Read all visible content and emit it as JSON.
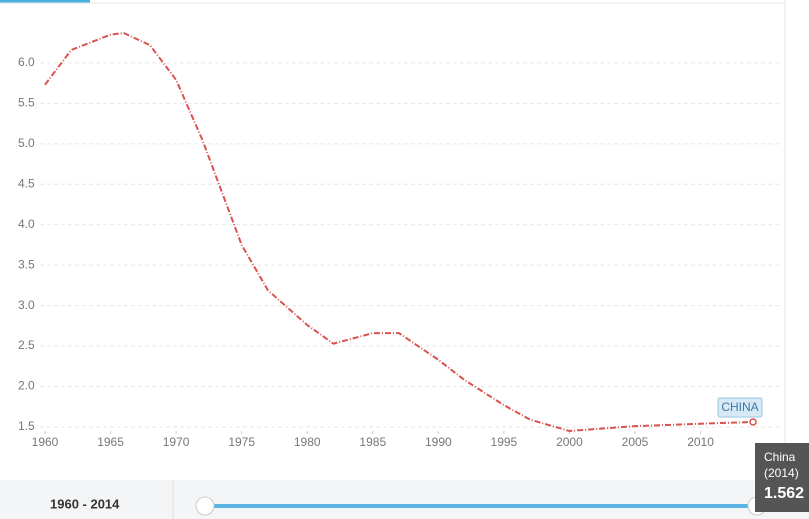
{
  "chart_data": {
    "type": "line",
    "x": [
      1960,
      1962,
      1965,
      1966,
      1968,
      1970,
      1972,
      1975,
      1977,
      1980,
      1982,
      1985,
      1987,
      1990,
      1992,
      1995,
      1997,
      2000,
      2005,
      2010,
      2014
    ],
    "series": [
      {
        "name": "China",
        "label": "CHINA",
        "color": "#d9534f",
        "values": [
          5.73,
          6.16,
          6.35,
          6.37,
          6.22,
          5.79,
          5.05,
          3.75,
          3.19,
          2.76,
          2.53,
          2.66,
          2.66,
          2.33,
          2.08,
          1.77,
          1.59,
          1.45,
          1.51,
          1.54,
          1.562
        ]
      }
    ],
    "xlim": [
      1960,
      2014
    ],
    "xticks": [
      1960,
      1965,
      1970,
      1975,
      1980,
      1985,
      1990,
      1995,
      2000,
      2005,
      2010
    ],
    "ylim": [
      1.45,
      6.6
    ],
    "yticks": [
      1.5,
      {
        "value": 2,
        "label": "2.0"
      },
      2.5,
      {
        "value": 3,
        "label": "3.0"
      },
      3.5,
      {
        "value": 4,
        "label": "4.0"
      },
      4.5,
      {
        "value": 5,
        "label": "5.0"
      },
      5.5,
      {
        "value": 6,
        "label": "6.0"
      }
    ],
    "grid": true,
    "tooltip": {
      "name": "China",
      "year": "(2014)",
      "value": "1.562"
    },
    "range_label": "1960 - 2014"
  }
}
